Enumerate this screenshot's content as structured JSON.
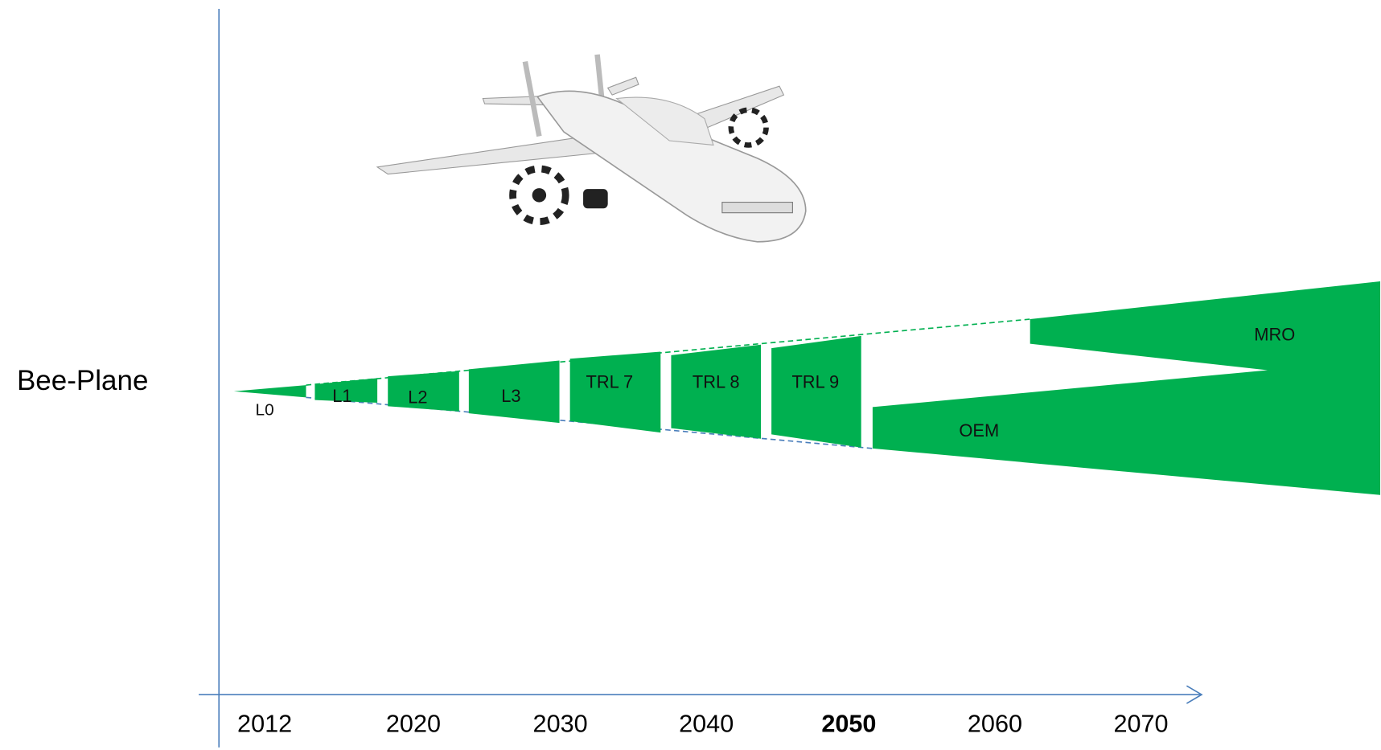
{
  "row_label": "Bee-Plane",
  "axis": {
    "labels": [
      {
        "text": "2012"
      },
      {
        "text": "2020"
      },
      {
        "text": "2030"
      },
      {
        "text": "2040"
      },
      {
        "text": "2050",
        "bold": true
      },
      {
        "text": "2060"
      },
      {
        "text": "2070"
      }
    ]
  },
  "segments": [
    {
      "label": "L0"
    },
    {
      "label": "L1"
    },
    {
      "label": "L2"
    },
    {
      "label": "L3"
    },
    {
      "label": "TRL 7"
    },
    {
      "label": "TRL 8"
    },
    {
      "label": "TRL 9"
    },
    {
      "label": "OEM"
    },
    {
      "label": "MRO"
    }
  ],
  "color": "#00b050"
}
